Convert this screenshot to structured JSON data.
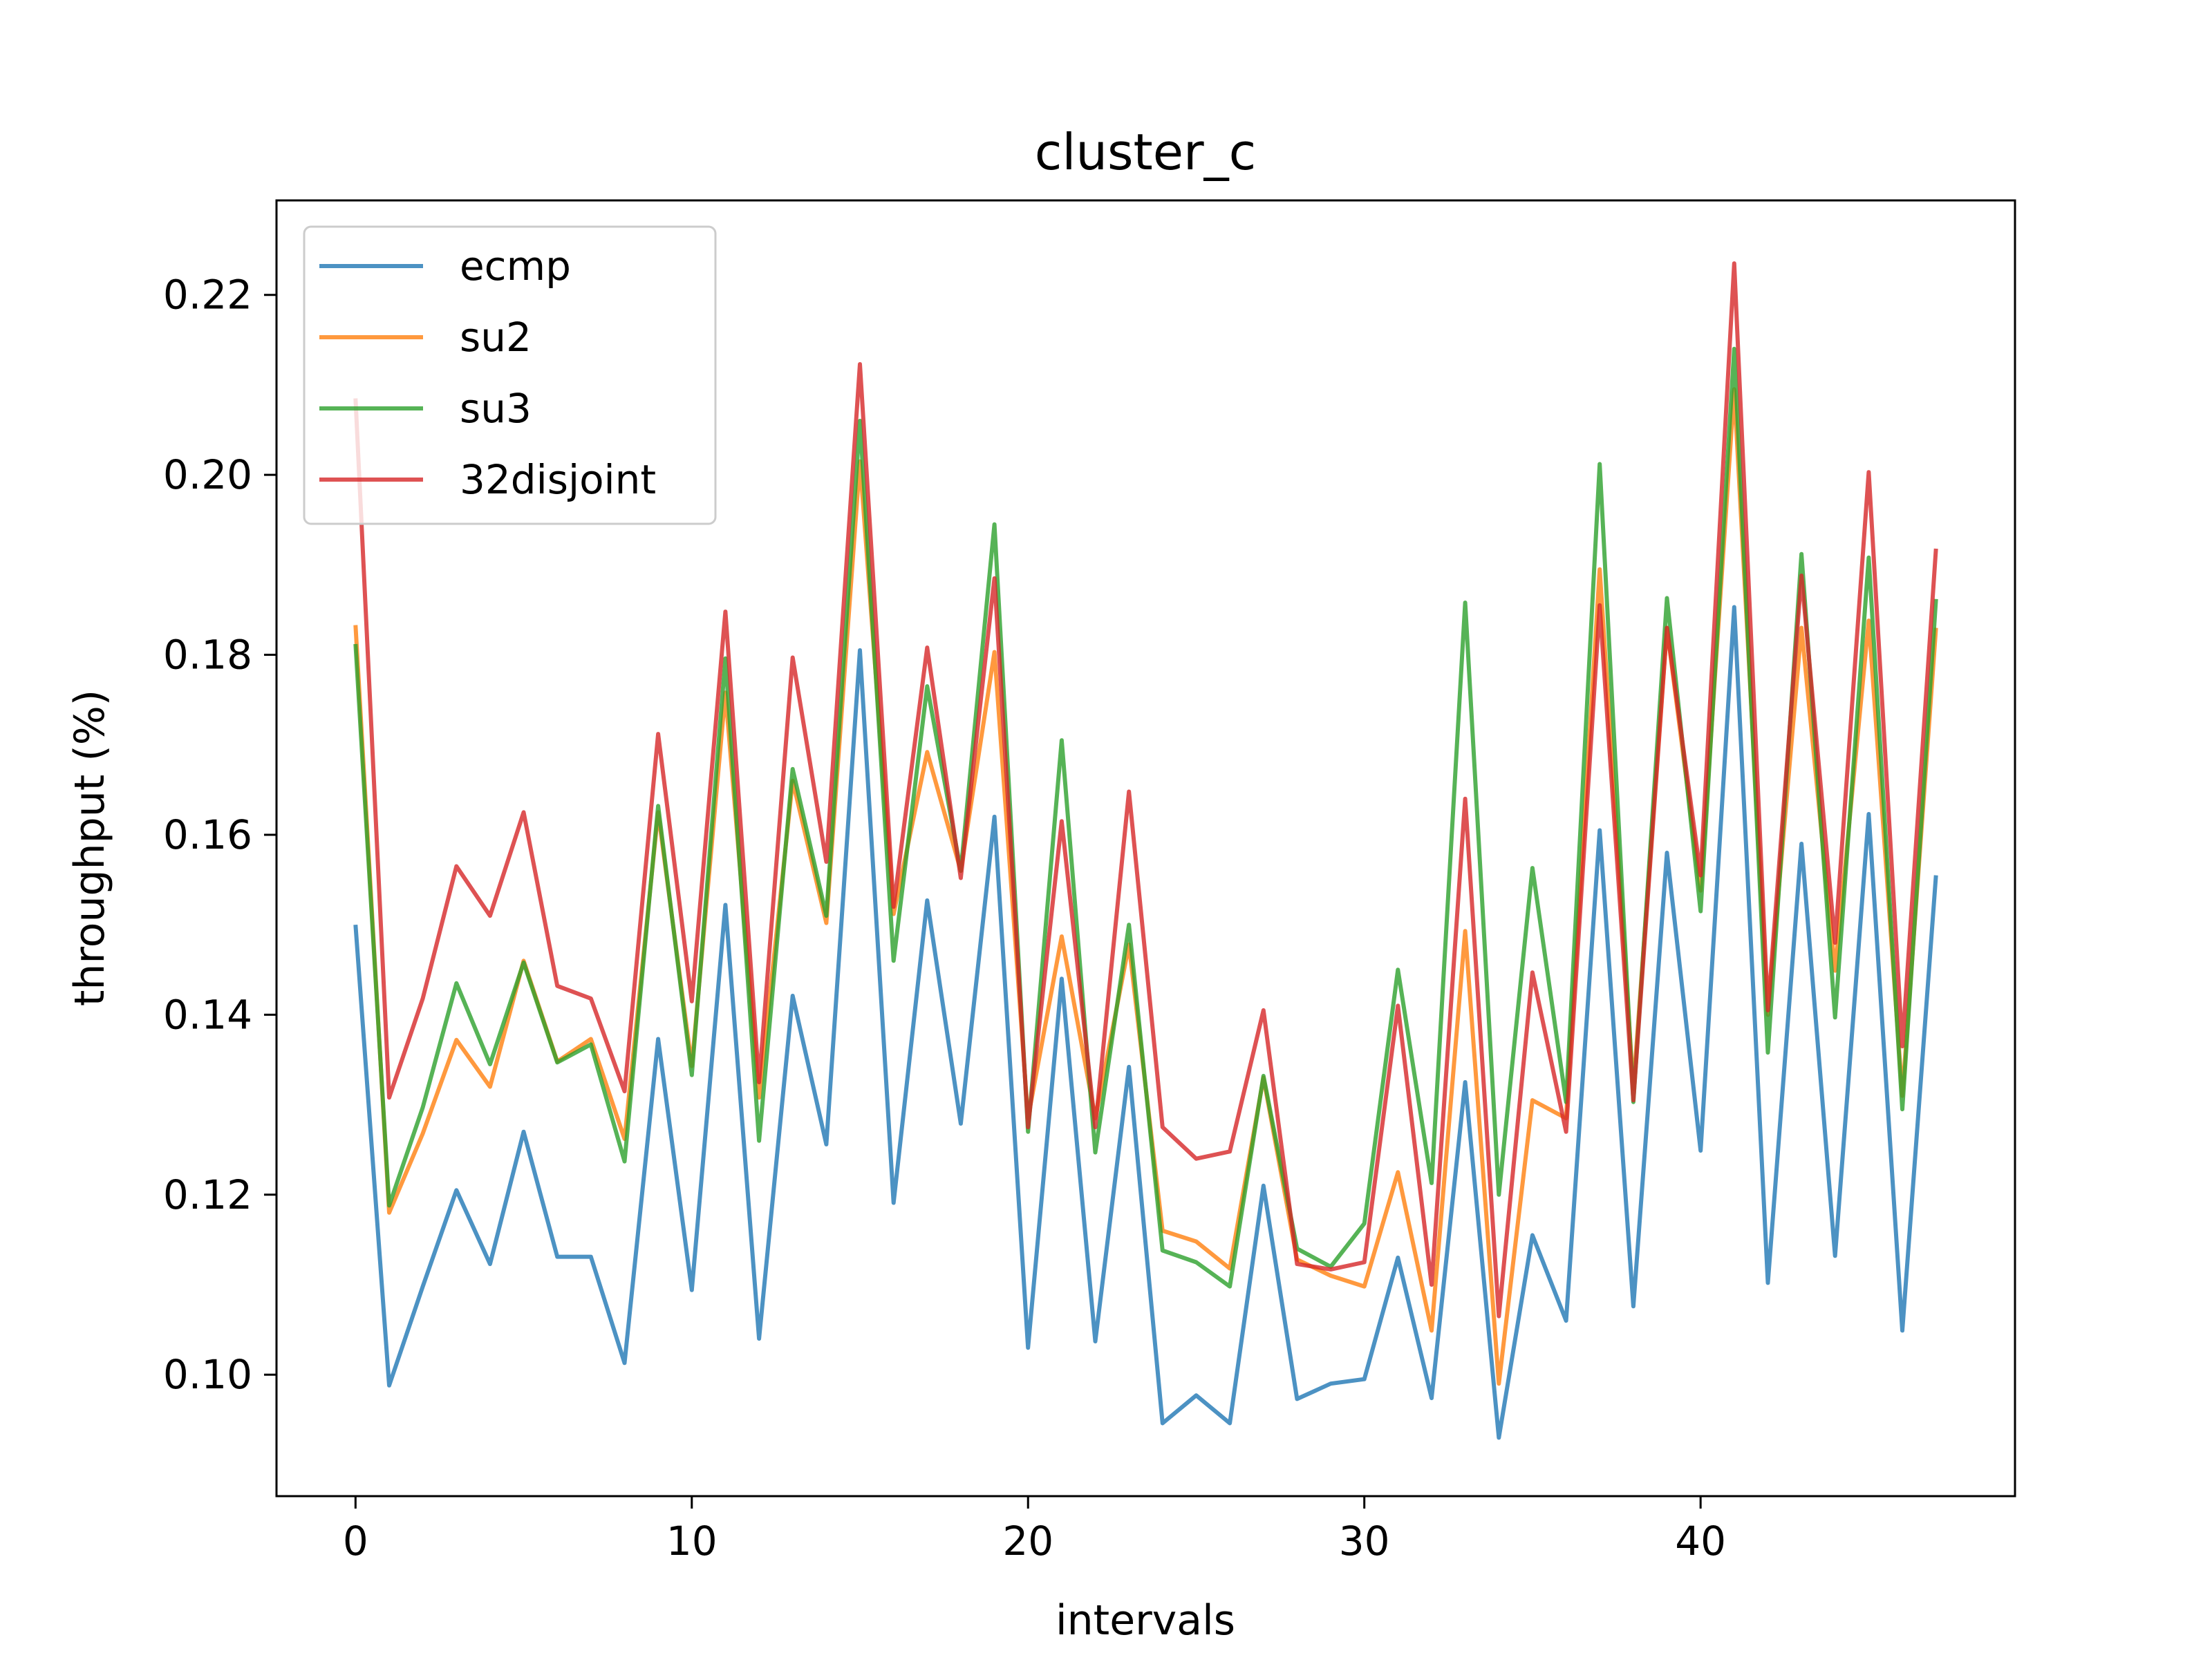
{
  "chart_data": {
    "type": "line",
    "title": "cluster_c",
    "xlabel": "intervals",
    "ylabel": "throughput (%)",
    "xlim": [
      -2.35,
      49.35
    ],
    "ylim": [
      0.0865,
      0.2305
    ],
    "xticks": [
      0,
      10,
      20,
      30,
      40
    ],
    "yticks": [
      0.1,
      0.12,
      0.14,
      0.16,
      0.18,
      0.2,
      0.22
    ],
    "xtick_labels": [
      "0",
      "10",
      "20",
      "30",
      "40"
    ],
    "ytick_labels": [
      "0.10",
      "0.12",
      "0.14",
      "0.16",
      "0.18",
      "0.20",
      "0.22"
    ],
    "grid": false,
    "legend_position": "upper-left",
    "x": [
      0,
      1,
      2,
      3,
      4,
      5,
      6,
      7,
      8,
      9,
      10,
      11,
      12,
      13,
      14,
      15,
      16,
      17,
      18,
      19,
      20,
      21,
      22,
      23,
      24,
      25,
      26,
      27,
      28,
      29,
      30,
      31,
      32,
      33,
      34,
      35,
      36,
      37,
      38,
      39,
      40,
      41,
      42,
      43,
      44,
      45,
      46,
      47
    ],
    "series": [
      {
        "name": "ecmp",
        "color": "#1f77b4",
        "values": [
          0.15,
          0.0988,
          0.1098,
          0.1205,
          0.1123,
          0.127,
          0.1131,
          0.1131,
          0.1013,
          0.1373,
          0.1094,
          0.1522,
          0.104,
          0.1421,
          0.1256,
          0.1805,
          0.1191,
          0.1527,
          0.1279,
          0.162,
          0.103,
          0.144,
          0.1037,
          0.1342,
          0.0946,
          0.0977,
          0.0946,
          0.121,
          0.0973,
          0.099,
          0.0995,
          0.113,
          0.0974,
          0.1325,
          0.093,
          0.1155,
          0.106,
          0.1605,
          0.1076,
          0.158,
          0.1249,
          0.1853,
          0.1102,
          0.159,
          0.1132,
          0.1623,
          0.1049,
          0.1555
        ]
      },
      {
        "name": "su2",
        "color": "#ff7f0e",
        "values": [
          0.1833,
          0.118,
          0.1268,
          0.1372,
          0.132,
          0.146,
          0.1348,
          0.1373,
          0.1262,
          0.1625,
          0.1343,
          0.1758,
          0.1308,
          0.166,
          0.1502,
          0.2015,
          0.1512,
          0.1692,
          0.156,
          0.1803,
          0.1285,
          0.1487,
          0.1285,
          0.1478,
          0.116,
          0.1148,
          0.1118,
          0.133,
          0.1128,
          0.111,
          0.1098,
          0.1225,
          0.1049,
          0.1493,
          0.099,
          0.1305,
          0.1285,
          0.1895,
          0.1318,
          0.183,
          0.1538,
          0.2095,
          0.14,
          0.183,
          0.1449,
          0.1838,
          0.131,
          0.183
        ]
      },
      {
        "name": "su3",
        "color": "#2ca02c",
        "values": [
          0.1812,
          0.1188,
          0.1297,
          0.1435,
          0.1345,
          0.1458,
          0.1347,
          0.1367,
          0.1237,
          0.1632,
          0.1333,
          0.1796,
          0.126,
          0.1673,
          0.151,
          0.206,
          0.146,
          0.1765,
          0.156,
          0.1945,
          0.127,
          0.1705,
          0.1247,
          0.15,
          0.1138,
          0.1125,
          0.1098,
          0.1332,
          0.114,
          0.112,
          0.1168,
          0.145,
          0.1213,
          0.1858,
          0.12,
          0.1563,
          0.1303,
          0.2012,
          0.1303,
          0.1863,
          0.1515,
          0.214,
          0.1358,
          0.1912,
          0.1397,
          0.1908,
          0.1295,
          0.1862
        ]
      },
      {
        "name": "32disjoint",
        "color": "#d62728",
        "values": [
          0.2085,
          0.1308,
          0.1418,
          0.1565,
          0.151,
          0.1625,
          0.1432,
          0.1418,
          0.1315,
          0.1712,
          0.1415,
          0.1848,
          0.1325,
          0.1797,
          0.157,
          0.2123,
          0.152,
          0.1808,
          0.1552,
          0.1885,
          0.1275,
          0.1615,
          0.1275,
          0.1648,
          0.1275,
          0.124,
          0.1248,
          0.1405,
          0.1123,
          0.1117,
          0.1125,
          0.141,
          0.11,
          0.164,
          0.1065,
          0.1447,
          0.127,
          0.1855,
          0.1305,
          0.183,
          0.1555,
          0.2235,
          0.1405,
          0.1888,
          0.148,
          0.2003,
          0.1365,
          0.1918
        ]
      }
    ]
  }
}
